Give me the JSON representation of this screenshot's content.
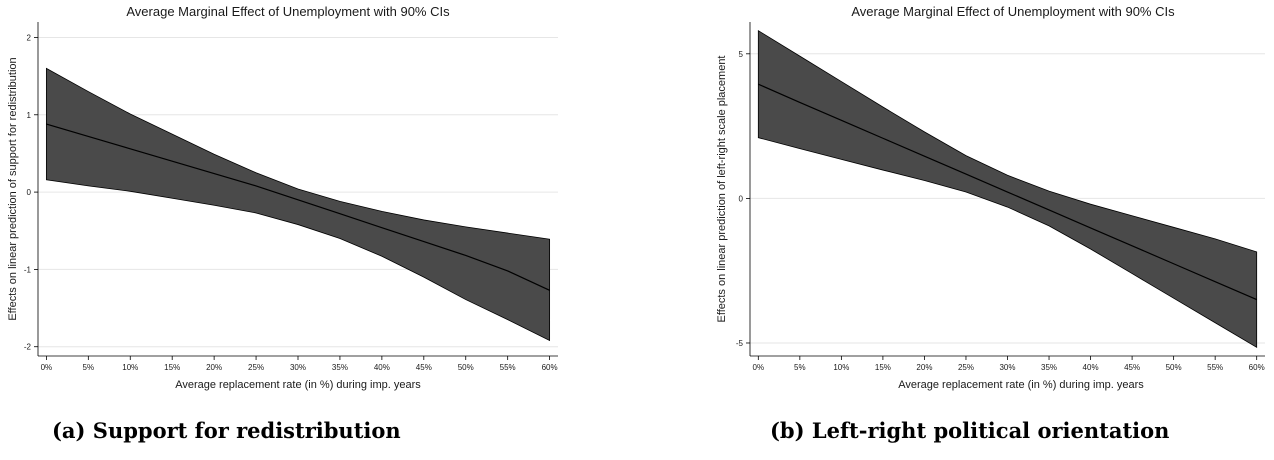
{
  "chart_data": [
    {
      "type": "area",
      "title": "Average Marginal Effect of Unemployment with 90% CIs",
      "xlabel": "Average replacement rate (in %) during imp. years",
      "ylabel": "Effects on linear prediction of support for redistribution",
      "caption_label": "(a)",
      "caption_text": "Support for redistribution",
      "x_tick_labels": [
        "0%",
        "5%",
        "10%",
        "15%",
        "20%",
        "25%",
        "30%",
        "35%",
        "40%",
        "45%",
        "50%",
        "55%",
        "60%"
      ],
      "x": [
        0,
        5,
        10,
        15,
        20,
        25,
        30,
        35,
        40,
        45,
        50,
        55,
        60
      ],
      "xlim": [
        -1,
        61
      ],
      "y_ticks": [
        -2,
        -1,
        0,
        1,
        2
      ],
      "y_tick_labels": [
        "-2",
        "-1",
        "0",
        "1",
        "2"
      ],
      "ylim": [
        -2.12,
        2.2
      ],
      "grid": true,
      "series": [
        {
          "role": "estimate",
          "values": [
            0.88,
            0.72,
            0.56,
            0.4,
            0.24,
            0.08,
            -0.1,
            -0.28,
            -0.46,
            -0.64,
            -0.82,
            -1.02,
            -1.27
          ]
        },
        {
          "role": "ci_upper",
          "values": [
            1.6,
            1.3,
            1.01,
            0.75,
            0.49,
            0.25,
            0.04,
            -0.12,
            -0.25,
            -0.36,
            -0.45,
            -0.53,
            -0.61
          ]
        },
        {
          "role": "ci_lower",
          "values": [
            0.16,
            0.08,
            0.01,
            -0.08,
            -0.17,
            -0.27,
            -0.42,
            -0.6,
            -0.83,
            -1.1,
            -1.39,
            -1.65,
            -1.92
          ]
        }
      ],
      "band_color": "#4a4a4a",
      "line_color": "#000000"
    },
    {
      "type": "area",
      "title": "Average Marginal Effect of Unemployment with 90% CIs",
      "xlabel": "Average replacement rate (in %) during imp. years",
      "ylabel": "Effects on linear prediction of left-right scale placement",
      "caption_label": "(b)",
      "caption_text": "Left-right political orientation",
      "x_tick_labels": [
        "0%",
        "5%",
        "10%",
        "15%",
        "20%",
        "25%",
        "30%",
        "35%",
        "40%",
        "45%",
        "50%",
        "55%",
        "60%"
      ],
      "x": [
        0,
        5,
        10,
        15,
        20,
        25,
        30,
        35,
        40,
        45,
        50,
        55,
        60
      ],
      "xlim": [
        -1,
        61
      ],
      "y_ticks": [
        -5,
        0,
        5
      ],
      "y_tick_labels": [
        "-5",
        "0",
        "5"
      ],
      "ylim": [
        -5.45,
        6.1
      ],
      "grid": true,
      "series": [
        {
          "role": "estimate",
          "values": [
            3.95,
            3.32,
            2.7,
            2.08,
            1.46,
            0.84,
            0.22,
            -0.4,
            -1.02,
            -1.64,
            -2.26,
            -2.88,
            -3.5
          ]
        },
        {
          "role": "ci_upper",
          "values": [
            5.8,
            4.92,
            4.04,
            3.16,
            2.3,
            1.48,
            0.8,
            0.25,
            -0.2,
            -0.6,
            -1.0,
            -1.4,
            -1.85
          ]
        },
        {
          "role": "ci_lower",
          "values": [
            2.1,
            1.72,
            1.35,
            0.98,
            0.62,
            0.22,
            -0.3,
            -0.95,
            -1.75,
            -2.6,
            -3.45,
            -4.3,
            -5.15
          ]
        }
      ],
      "band_color": "#4a4a4a",
      "line_color": "#000000"
    }
  ]
}
